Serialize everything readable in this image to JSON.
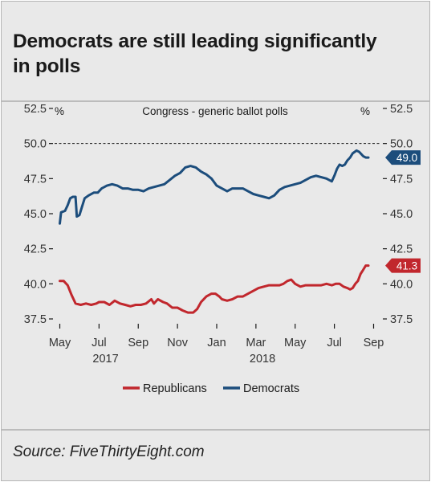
{
  "title": "Democrats are still leading significantly in polls",
  "source": "Source: FiveThirtyEight.com",
  "chart_data": {
    "type": "line",
    "subtitle": "Congress - generic ballot polls",
    "unit_left": "%",
    "unit_right": "%",
    "ylim": [
      37.5,
      52.5
    ],
    "y_ticks": [
      52.5,
      50.0,
      47.5,
      45.0,
      42.5,
      40.0,
      37.5
    ],
    "y_tick_labels": [
      "52.5",
      "50.0",
      "47.5",
      "45.0",
      "42.5",
      "40.0",
      "37.5"
    ],
    "reference_line": 50.0,
    "x_ticks": [
      "May",
      "Jul",
      "Sep",
      "Nov",
      "Jan",
      "Mar",
      "May",
      "Jul",
      "Sep"
    ],
    "x_years": [
      "2017",
      "2018"
    ],
    "series": [
      {
        "name": "Republicans",
        "color": "#c1272d",
        "end_label": "41.3",
        "values": [
          [
            0,
            40.2
          ],
          [
            0.15,
            40.2
          ],
          [
            0.3,
            39.9
          ],
          [
            0.45,
            39.2
          ],
          [
            0.6,
            38.6
          ],
          [
            0.8,
            38.5
          ],
          [
            1.0,
            38.6
          ],
          [
            1.2,
            38.5
          ],
          [
            1.4,
            38.6
          ],
          [
            1.5,
            38.7
          ],
          [
            1.7,
            38.7
          ],
          [
            1.9,
            38.5
          ],
          [
            2.1,
            38.8
          ],
          [
            2.3,
            38.6
          ],
          [
            2.5,
            38.5
          ],
          [
            2.7,
            38.4
          ],
          [
            2.9,
            38.5
          ],
          [
            3.1,
            38.5
          ],
          [
            3.3,
            38.6
          ],
          [
            3.5,
            38.9
          ],
          [
            3.6,
            38.6
          ],
          [
            3.75,
            38.9
          ],
          [
            3.95,
            38.7
          ],
          [
            4.1,
            38.6
          ],
          [
            4.3,
            38.3
          ],
          [
            4.5,
            38.3
          ],
          [
            4.7,
            38.1
          ],
          [
            4.9,
            37.95
          ],
          [
            5.1,
            37.95
          ],
          [
            5.25,
            38.2
          ],
          [
            5.4,
            38.7
          ],
          [
            5.6,
            39.1
          ],
          [
            5.8,
            39.3
          ],
          [
            5.95,
            39.3
          ],
          [
            6.1,
            39.1
          ],
          [
            6.2,
            38.9
          ],
          [
            6.4,
            38.8
          ],
          [
            6.6,
            38.9
          ],
          [
            6.8,
            39.1
          ],
          [
            7.0,
            39.1
          ],
          [
            7.2,
            39.3
          ],
          [
            7.4,
            39.5
          ],
          [
            7.6,
            39.7
          ],
          [
            7.8,
            39.8
          ],
          [
            8.0,
            39.9
          ],
          [
            8.2,
            39.9
          ],
          [
            8.4,
            39.9
          ],
          [
            8.55,
            40.0
          ],
          [
            8.7,
            40.2
          ],
          [
            8.85,
            40.3
          ],
          [
            9.0,
            40.0
          ],
          [
            9.2,
            39.8
          ],
          [
            9.4,
            39.9
          ],
          [
            9.6,
            39.9
          ],
          [
            9.8,
            39.9
          ],
          [
            10.0,
            39.9
          ],
          [
            10.2,
            40.0
          ],
          [
            10.4,
            39.9
          ],
          [
            10.55,
            40.0
          ],
          [
            10.7,
            40.0
          ],
          [
            10.85,
            39.8
          ],
          [
            11.0,
            39.7
          ],
          [
            11.1,
            39.6
          ],
          [
            11.2,
            39.7
          ],
          [
            11.3,
            40.0
          ],
          [
            11.4,
            40.2
          ],
          [
            11.5,
            40.7
          ],
          [
            11.6,
            41.0
          ],
          [
            11.7,
            41.3
          ],
          [
            11.8,
            41.3
          ]
        ]
      },
      {
        "name": "Democrats",
        "color": "#1c4d7c",
        "end_label": "49.0",
        "values": [
          [
            0,
            44.3
          ],
          [
            0.05,
            45.1
          ],
          [
            0.2,
            45.2
          ],
          [
            0.3,
            45.6
          ],
          [
            0.4,
            46.1
          ],
          [
            0.5,
            46.2
          ],
          [
            0.6,
            46.2
          ],
          [
            0.65,
            44.8
          ],
          [
            0.75,
            44.9
          ],
          [
            0.85,
            45.5
          ],
          [
            0.95,
            46.1
          ],
          [
            1.1,
            46.3
          ],
          [
            1.3,
            46.5
          ],
          [
            1.45,
            46.5
          ],
          [
            1.6,
            46.8
          ],
          [
            1.8,
            47.0
          ],
          [
            2.0,
            47.1
          ],
          [
            2.2,
            47.0
          ],
          [
            2.4,
            46.8
          ],
          [
            2.6,
            46.8
          ],
          [
            2.8,
            46.7
          ],
          [
            3.0,
            46.7
          ],
          [
            3.2,
            46.6
          ],
          [
            3.4,
            46.8
          ],
          [
            3.6,
            46.9
          ],
          [
            3.8,
            47.0
          ],
          [
            4.0,
            47.1
          ],
          [
            4.2,
            47.4
          ],
          [
            4.4,
            47.7
          ],
          [
            4.6,
            47.9
          ],
          [
            4.8,
            48.3
          ],
          [
            5.0,
            48.4
          ],
          [
            5.2,
            48.3
          ],
          [
            5.4,
            48.0
          ],
          [
            5.6,
            47.8
          ],
          [
            5.8,
            47.5
          ],
          [
            6.0,
            47.0
          ],
          [
            6.2,
            46.8
          ],
          [
            6.4,
            46.6
          ],
          [
            6.6,
            46.8
          ],
          [
            6.8,
            46.8
          ],
          [
            7.0,
            46.8
          ],
          [
            7.2,
            46.6
          ],
          [
            7.4,
            46.4
          ],
          [
            7.6,
            46.3
          ],
          [
            7.8,
            46.2
          ],
          [
            8.0,
            46.1
          ],
          [
            8.2,
            46.3
          ],
          [
            8.4,
            46.7
          ],
          [
            8.6,
            46.9
          ],
          [
            8.8,
            47.0
          ],
          [
            9.0,
            47.1
          ],
          [
            9.2,
            47.2
          ],
          [
            9.4,
            47.4
          ],
          [
            9.6,
            47.6
          ],
          [
            9.8,
            47.7
          ],
          [
            10.0,
            47.6
          ],
          [
            10.2,
            47.5
          ],
          [
            10.4,
            47.3
          ],
          [
            10.5,
            47.7
          ],
          [
            10.6,
            48.2
          ],
          [
            10.7,
            48.5
          ],
          [
            10.8,
            48.4
          ],
          [
            10.9,
            48.5
          ],
          [
            11.0,
            48.8
          ],
          [
            11.1,
            49.0
          ],
          [
            11.2,
            49.3
          ],
          [
            11.35,
            49.5
          ],
          [
            11.45,
            49.4
          ],
          [
            11.6,
            49.1
          ],
          [
            11.7,
            49.0
          ],
          [
            11.8,
            49.0
          ]
        ]
      }
    ],
    "legend_position": "bottom"
  }
}
